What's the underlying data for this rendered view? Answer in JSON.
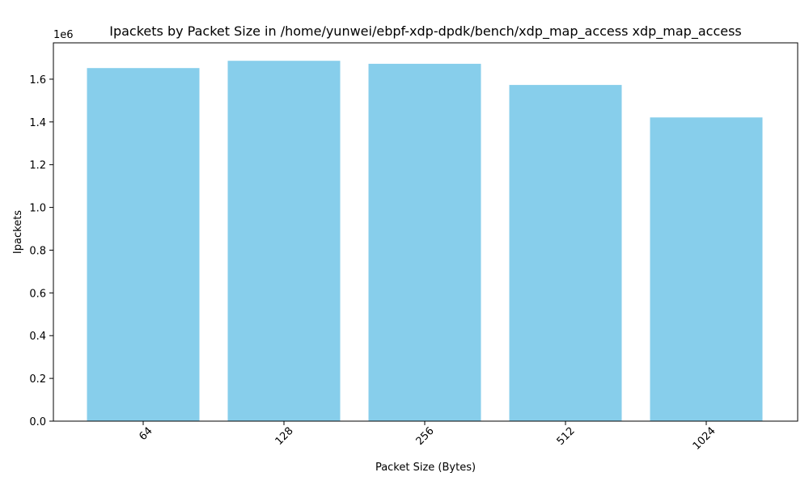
{
  "chart_data": {
    "type": "bar",
    "title": "Ipackets by Packet Size in /home/yunwei/ebpf-xdp-dpdk/bench/xdp_map_access xdp_map_access",
    "xlabel": "Packet Size (Bytes)",
    "ylabel": "Ipackets",
    "y_multiplier_label": "1e6",
    "categories": [
      "64",
      "128",
      "256",
      "512",
      "1024"
    ],
    "values": [
      1652000,
      1686000,
      1672000,
      1573000,
      1421000
    ],
    "ylim": [
      0,
      1770000
    ],
    "yticks": [
      {
        "value": 0,
        "label": "0.0"
      },
      {
        "value": 200000,
        "label": "0.2"
      },
      {
        "value": 400000,
        "label": "0.4"
      },
      {
        "value": 600000,
        "label": "0.6"
      },
      {
        "value": 800000,
        "label": "0.8"
      },
      {
        "value": 1000000,
        "label": "1.0"
      },
      {
        "value": 1200000,
        "label": "1.2"
      },
      {
        "value": 1400000,
        "label": "1.4"
      },
      {
        "value": 1600000,
        "label": "1.6"
      }
    ],
    "bar_color": "#87CEEB",
    "grid": false,
    "xtick_rotation_deg": 45
  }
}
